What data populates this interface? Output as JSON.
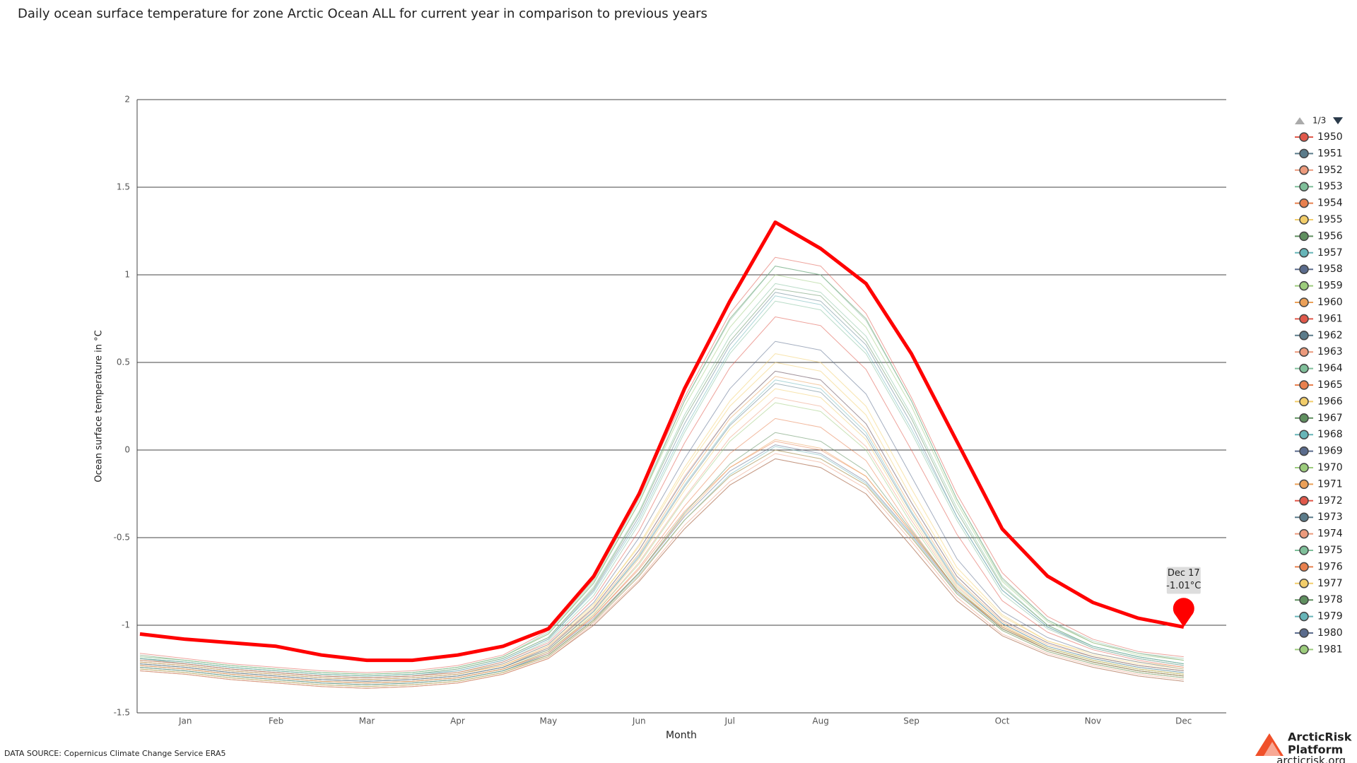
{
  "chart_data": {
    "type": "line",
    "title": "Daily ocean surface temperature for zone Arctic Ocean ALL for current year in comparison to previous years",
    "y_label": "Ocean surface temperature in °C",
    "x_label": "Month",
    "categories": [
      null,
      "Jan",
      null,
      "Feb",
      null,
      "Mar",
      null,
      "Apr",
      null,
      "May",
      null,
      "Jun",
      null,
      "Jul",
      null,
      "Aug",
      null,
      "Sep",
      null,
      "Oct",
      null,
      "Nov",
      null,
      "Dec"
    ],
    "ylim": [
      -1.5,
      2
    ],
    "yticks": [
      -1.5,
      -1,
      -0.5,
      0,
      0.5,
      1,
      1.5,
      2
    ],
    "grid": true,
    "legend_position": "right",
    "legend_page": "1/3",
    "annotation": [
      "Dec 17",
      "-1.01°C"
    ],
    "series": [
      {
        "name": "1950",
        "color": "#e0584a",
        "values": [
          -1.16,
          -1.19,
          -1.22,
          -1.24,
          -1.26,
          -1.27,
          -1.26,
          -1.23,
          -1.17,
          -1.03,
          -0.72,
          -0.25,
          0.3,
          0.78,
          1.1,
          1.05,
          0.78,
          0.3,
          -0.25,
          -0.7,
          -0.95,
          -1.08,
          -1.15,
          -1.18
        ]
      },
      {
        "name": "1951",
        "color": "#5b7b8a",
        "values": [
          -1.26,
          -1.28,
          -1.31,
          -1.33,
          -1.35,
          -1.36,
          -1.35,
          -1.33,
          -1.28,
          -1.19,
          -1.0,
          -0.75,
          -0.45,
          -0.2,
          -0.05,
          -0.1,
          -0.25,
          -0.55,
          -0.86,
          -1.06,
          -1.17,
          -1.24,
          -1.29,
          -1.32
        ]
      },
      {
        "name": "1952",
        "color": "#ec9a7c",
        "values": [
          -1.21,
          -1.23,
          -1.26,
          -1.28,
          -1.3,
          -1.31,
          -1.3,
          -1.28,
          -1.23,
          -1.12,
          -0.9,
          -0.57,
          -0.15,
          0.2,
          0.45,
          0.4,
          0.15,
          -0.3,
          -0.72,
          -0.97,
          -1.1,
          -1.18,
          -1.23,
          -1.26
        ]
      },
      {
        "name": "1953",
        "color": "#7fbf9a",
        "values": [
          -1.19,
          -1.21,
          -1.24,
          -1.26,
          -1.28,
          -1.29,
          -1.28,
          -1.25,
          -1.19,
          -1.07,
          -0.78,
          -0.35,
          0.2,
          0.65,
          0.95,
          0.9,
          0.65,
          0.2,
          -0.33,
          -0.77,
          -1.0,
          -1.12,
          -1.18,
          -1.22
        ]
      },
      {
        "name": "1954",
        "color": "#e8804e",
        "values": [
          -1.23,
          -1.25,
          -1.28,
          -1.3,
          -1.32,
          -1.33,
          -1.32,
          -1.3,
          -1.25,
          -1.15,
          -0.95,
          -0.68,
          -0.35,
          -0.1,
          0.05,
          0.0,
          -0.15,
          -0.47,
          -0.8,
          -1.01,
          -1.13,
          -1.2,
          -1.25,
          -1.28
        ]
      },
      {
        "name": "1955",
        "color": "#f2cd6a",
        "values": [
          -1.2,
          -1.22,
          -1.25,
          -1.27,
          -1.29,
          -1.3,
          -1.29,
          -1.27,
          -1.22,
          -1.11,
          -0.88,
          -0.55,
          -0.12,
          0.25,
          0.5,
          0.45,
          0.2,
          -0.27,
          -0.7,
          -0.95,
          -1.09,
          -1.16,
          -1.21,
          -1.24
        ]
      },
      {
        "name": "1956",
        "color": "#5f8f5f",
        "values": [
          -1.17,
          -1.2,
          -1.23,
          -1.25,
          -1.27,
          -1.28,
          -1.27,
          -1.24,
          -1.18,
          -1.05,
          -0.76,
          -0.3,
          0.28,
          0.75,
          1.05,
          1.0,
          0.75,
          0.28,
          -0.28,
          -0.73,
          -0.97,
          -1.1,
          -1.16,
          -1.2
        ]
      },
      {
        "name": "1957",
        "color": "#67b5b8",
        "values": [
          -1.22,
          -1.24,
          -1.27,
          -1.29,
          -1.31,
          -1.32,
          -1.31,
          -1.29,
          -1.24,
          -1.14,
          -0.92,
          -0.6,
          -0.2,
          0.15,
          0.4,
          0.35,
          0.1,
          -0.35,
          -0.75,
          -0.99,
          -1.12,
          -1.19,
          -1.24,
          -1.27
        ]
      },
      {
        "name": "1958",
        "color": "#5a6b8c",
        "values": [
          -1.24,
          -1.26,
          -1.29,
          -1.31,
          -1.33,
          -1.34,
          -1.33,
          -1.31,
          -1.26,
          -1.16,
          -0.96,
          -0.7,
          -0.38,
          -0.12,
          0.03,
          -0.02,
          -0.18,
          -0.48,
          -0.81,
          -1.02,
          -1.14,
          -1.21,
          -1.26,
          -1.29
        ]
      },
      {
        "name": "1959",
        "color": "#9ccc7c",
        "values": [
          -1.18,
          -1.2,
          -1.23,
          -1.25,
          -1.27,
          -1.28,
          -1.27,
          -1.24,
          -1.18,
          -1.05,
          -0.75,
          -0.3,
          0.25,
          0.7,
          1.0,
          0.95,
          0.7,
          0.25,
          -0.3,
          -0.75,
          -0.98,
          -1.1,
          -1.17,
          -1.2
        ]
      },
      {
        "name": "1960",
        "color": "#eba058",
        "values": [
          -1.21,
          -1.23,
          -1.26,
          -1.28,
          -1.3,
          -1.31,
          -1.3,
          -1.28,
          -1.23,
          -1.13,
          -0.91,
          -0.59,
          -0.18,
          0.18,
          0.42,
          0.37,
          0.12,
          -0.33,
          -0.74,
          -0.98,
          -1.11,
          -1.18,
          -1.23,
          -1.26
        ]
      },
      {
        "name": "1961",
        "color": "#e0584a",
        "values": [
          -1.25,
          -1.27,
          -1.3,
          -1.32,
          -1.34,
          -1.35,
          -1.34,
          -1.32,
          -1.27,
          -1.18,
          -0.98,
          -0.72,
          -0.4,
          -0.15,
          0.0,
          -0.05,
          -0.2,
          -0.5,
          -0.82,
          -1.03,
          -1.15,
          -1.22,
          -1.27,
          -1.3
        ]
      },
      {
        "name": "1962",
        "color": "#5b7b8a",
        "values": [
          -1.19,
          -1.22,
          -1.25,
          -1.27,
          -1.29,
          -1.3,
          -1.29,
          -1.26,
          -1.2,
          -1.08,
          -0.8,
          -0.38,
          0.15,
          0.6,
          0.9,
          0.85,
          0.6,
          0.15,
          -0.38,
          -0.8,
          -1.01,
          -1.13,
          -1.19,
          -1.23
        ]
      },
      {
        "name": "1963",
        "color": "#ec9a7c",
        "values": [
          -1.23,
          -1.25,
          -1.28,
          -1.3,
          -1.32,
          -1.33,
          -1.32,
          -1.3,
          -1.25,
          -1.15,
          -0.94,
          -0.64,
          -0.27,
          0.07,
          0.3,
          0.25,
          0.02,
          -0.4,
          -0.78,
          -1.0,
          -1.13,
          -1.2,
          -1.25,
          -1.28
        ]
      },
      {
        "name": "1964",
        "color": "#7fbf9a",
        "values": [
          -1.2,
          -1.22,
          -1.25,
          -1.27,
          -1.29,
          -1.3,
          -1.29,
          -1.27,
          -1.21,
          -1.09,
          -0.83,
          -0.42,
          0.1,
          0.55,
          0.85,
          0.8,
          0.55,
          0.1,
          -0.4,
          -0.82,
          -1.02,
          -1.13,
          -1.19,
          -1.23
        ]
      },
      {
        "name": "1965",
        "color": "#e8804e",
        "values": [
          -1.26,
          -1.28,
          -1.31,
          -1.33,
          -1.35,
          -1.36,
          -1.35,
          -1.33,
          -1.28,
          -1.19,
          -1.0,
          -0.75,
          -0.45,
          -0.2,
          -0.05,
          -0.1,
          -0.25,
          -0.55,
          -0.86,
          -1.06,
          -1.17,
          -1.24,
          -1.29,
          -1.32
        ]
      },
      {
        "name": "1966",
        "color": "#f2cd6a",
        "values": [
          -1.22,
          -1.24,
          -1.27,
          -1.29,
          -1.31,
          -1.32,
          -1.31,
          -1.29,
          -1.24,
          -1.14,
          -0.93,
          -0.62,
          -0.23,
          0.12,
          0.35,
          0.3,
          0.06,
          -0.38,
          -0.77,
          -1.0,
          -1.13,
          -1.2,
          -1.25,
          -1.28
        ]
      },
      {
        "name": "1967",
        "color": "#5f8f5f",
        "values": [
          -1.19,
          -1.21,
          -1.24,
          -1.26,
          -1.28,
          -1.29,
          -1.28,
          -1.25,
          -1.19,
          -1.07,
          -0.79,
          -0.36,
          0.18,
          0.62,
          0.92,
          0.88,
          0.62,
          0.18,
          -0.35,
          -0.78,
          -1.0,
          -1.12,
          -1.18,
          -1.22
        ]
      },
      {
        "name": "1968",
        "color": "#67b5b8",
        "values": [
          -1.24,
          -1.26,
          -1.29,
          -1.31,
          -1.33,
          -1.34,
          -1.33,
          -1.31,
          -1.26,
          -1.17,
          -0.97,
          -0.71,
          -0.4,
          -0.14,
          0.02,
          -0.03,
          -0.19,
          -0.49,
          -0.82,
          -1.03,
          -1.15,
          -1.22,
          -1.27,
          -1.3
        ]
      },
      {
        "name": "1969",
        "color": "#5a6b8c",
        "values": [
          -1.21,
          -1.23,
          -1.26,
          -1.28,
          -1.3,
          -1.31,
          -1.3,
          -1.28,
          -1.22,
          -1.11,
          -0.87,
          -0.5,
          -0.05,
          0.35,
          0.62,
          0.57,
          0.32,
          -0.15,
          -0.62,
          -0.92,
          -1.07,
          -1.16,
          -1.21,
          -1.25
        ]
      },
      {
        "name": "1970",
        "color": "#9ccc7c",
        "values": [
          -1.23,
          -1.25,
          -1.28,
          -1.3,
          -1.32,
          -1.33,
          -1.32,
          -1.3,
          -1.25,
          -1.15,
          -0.94,
          -0.65,
          -0.28,
          0.05,
          0.27,
          0.22,
          0.0,
          -0.42,
          -0.79,
          -1.01,
          -1.13,
          -1.2,
          -1.25,
          -1.28
        ]
      },
      {
        "name": "1971",
        "color": "#eba058",
        "values": [
          -1.25,
          -1.27,
          -1.3,
          -1.32,
          -1.34,
          -1.35,
          -1.34,
          -1.32,
          -1.27,
          -1.17,
          -0.97,
          -0.7,
          -0.37,
          -0.1,
          0.06,
          0.01,
          -0.15,
          -0.47,
          -0.8,
          -1.02,
          -1.14,
          -1.21,
          -1.26,
          -1.29
        ]
      },
      {
        "name": "1972",
        "color": "#e0584a",
        "values": [
          -1.2,
          -1.22,
          -1.25,
          -1.27,
          -1.29,
          -1.3,
          -1.29,
          -1.27,
          -1.21,
          -1.1,
          -0.85,
          -0.46,
          0.04,
          0.47,
          0.76,
          0.71,
          0.46,
          0.0,
          -0.48,
          -0.86,
          -1.04,
          -1.14,
          -1.2,
          -1.24
        ]
      },
      {
        "name": "1973",
        "color": "#5b7b8a",
        "values": [
          -1.22,
          -1.24,
          -1.27,
          -1.29,
          -1.31,
          -1.32,
          -1.31,
          -1.29,
          -1.24,
          -1.14,
          -0.92,
          -0.61,
          -0.21,
          0.14,
          0.38,
          0.33,
          0.08,
          -0.36,
          -0.76,
          -0.99,
          -1.12,
          -1.19,
          -1.24,
          -1.27
        ]
      },
      {
        "name": "1974",
        "color": "#ec9a7c",
        "values": [
          -1.26,
          -1.28,
          -1.31,
          -1.33,
          -1.35,
          -1.36,
          -1.35,
          -1.33,
          -1.28,
          -1.19,
          -0.99,
          -0.74,
          -0.43,
          -0.18,
          -0.02,
          -0.07,
          -0.22,
          -0.52,
          -0.84,
          -1.05,
          -1.16,
          -1.23,
          -1.28,
          -1.31
        ]
      },
      {
        "name": "1975",
        "color": "#7fbf9a",
        "values": [
          -1.18,
          -1.2,
          -1.23,
          -1.25,
          -1.27,
          -1.28,
          -1.27,
          -1.24,
          -1.18,
          -1.04,
          -0.74,
          -0.28,
          0.28,
          0.74,
          1.05,
          1.0,
          0.74,
          0.28,
          -0.28,
          -0.74,
          -0.97,
          -1.09,
          -1.16,
          -1.19
        ]
      },
      {
        "name": "1976",
        "color": "#e8804e",
        "values": [
          -1.23,
          -1.25,
          -1.28,
          -1.3,
          -1.32,
          -1.33,
          -1.32,
          -1.3,
          -1.25,
          -1.16,
          -0.95,
          -0.67,
          -0.32,
          -0.02,
          0.18,
          0.13,
          -0.06,
          -0.45,
          -0.8,
          -1.01,
          -1.14,
          -1.21,
          -1.26,
          -1.29
        ]
      },
      {
        "name": "1977",
        "color": "#f2cd6a",
        "values": [
          -1.21,
          -1.23,
          -1.26,
          -1.28,
          -1.3,
          -1.31,
          -1.3,
          -1.28,
          -1.23,
          -1.12,
          -0.89,
          -0.54,
          -0.1,
          0.28,
          0.55,
          0.5,
          0.25,
          -0.22,
          -0.67,
          -0.94,
          -1.09,
          -1.17,
          -1.22,
          -1.25
        ]
      },
      {
        "name": "1978",
        "color": "#5f8f5f",
        "values": [
          -1.24,
          -1.26,
          -1.29,
          -1.31,
          -1.33,
          -1.34,
          -1.33,
          -1.31,
          -1.26,
          -1.17,
          -0.97,
          -0.7,
          -0.36,
          -0.08,
          0.1,
          0.05,
          -0.12,
          -0.46,
          -0.8,
          -1.02,
          -1.14,
          -1.21,
          -1.26,
          -1.29
        ]
      },
      {
        "name": "1979",
        "color": "#67b5b8",
        "values": [
          -1.19,
          -1.21,
          -1.24,
          -1.26,
          -1.28,
          -1.29,
          -1.28,
          -1.26,
          -1.2,
          -1.08,
          -0.81,
          -0.4,
          0.12,
          0.57,
          0.88,
          0.83,
          0.57,
          0.12,
          -0.38,
          -0.8,
          -1.01,
          -1.12,
          -1.18,
          -1.22
        ]
      },
      {
        "name": "1980",
        "color": "#5a6b8c",
        "values": [
          -1.22,
          -1.24,
          -1.27,
          -1.29,
          -1.31,
          -1.32,
          -1.31,
          -1.29,
          -1.24,
          -1.13,
          -0.9,
          -0.57,
          -0.16,
          0.2,
          0.45,
          0.4,
          0.15,
          -0.3,
          -0.72,
          -0.97,
          -1.1,
          -1.18,
          -1.23,
          -1.26
        ]
      },
      {
        "name": "1981",
        "color": "#9ccc7c",
        "values": [
          -1.25,
          -1.27,
          -1.3,
          -1.32,
          -1.34,
          -1.35,
          -1.34,
          -1.32,
          -1.27,
          -1.18,
          -0.98,
          -0.72,
          -0.4,
          -0.15,
          0.0,
          -0.05,
          -0.2,
          -0.5,
          -0.82,
          -1.03,
          -1.15,
          -1.22,
          -1.27,
          -1.3
        ]
      },
      {
        "color": "#ff0000",
        "values": [
          -1.05,
          -1.08,
          -1.1,
          -1.12,
          -1.17,
          -1.2,
          -1.2,
          -1.17,
          -1.12,
          -1.02,
          -0.72,
          -0.25,
          0.35,
          0.85,
          1.3,
          1.15,
          0.95,
          0.55,
          0.05,
          -0.45,
          -0.72,
          -0.87,
          -0.96,
          -1.01
        ]
      }
    ]
  },
  "data_source": "DATA SOURCE: Copernicus Climate Change Service ERA5",
  "logo": [
    "ArcticRisk",
    "Platform"
  ],
  "website": "arcticrisk.org"
}
